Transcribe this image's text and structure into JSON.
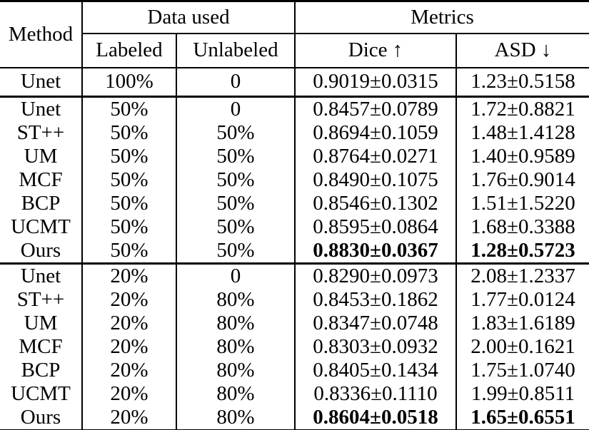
{
  "table": {
    "header": {
      "method": "Method",
      "data_used": "Data used",
      "metrics": "Metrics",
      "labeled": "Labeled",
      "unlabeled": "Unlabeled",
      "dice": "Dice ↑",
      "asd": "ASD ↓"
    },
    "sections": [
      {
        "rows": [
          {
            "method": "Unet",
            "labeled": "100%",
            "unlabeled": "0",
            "dice": "0.9019±0.0315",
            "asd": "1.23±0.5158",
            "bold": false
          }
        ]
      },
      {
        "rows": [
          {
            "method": "Unet",
            "labeled": "50%",
            "unlabeled": "0",
            "dice": "0.8457±0.0789",
            "asd": "1.72±0.8821",
            "bold": false
          },
          {
            "method": "ST++",
            "labeled": "50%",
            "unlabeled": "50%",
            "dice": "0.8694±0.1059",
            "asd": "1.48±1.4128",
            "bold": false
          },
          {
            "method": "UM",
            "labeled": "50%",
            "unlabeled": "50%",
            "dice": "0.8764±0.0271",
            "asd": "1.40±0.9589",
            "bold": false
          },
          {
            "method": "MCF",
            "labeled": "50%",
            "unlabeled": "50%",
            "dice": "0.8490±0.1075",
            "asd": "1.76±0.9014",
            "bold": false
          },
          {
            "method": "BCP",
            "labeled": "50%",
            "unlabeled": "50%",
            "dice": "0.8546±0.1302",
            "asd": "1.51±1.5220",
            "bold": false
          },
          {
            "method": "UCMT",
            "labeled": "50%",
            "unlabeled": "50%",
            "dice": "0.8595±0.0864",
            "asd": "1.68±0.3388",
            "bold": false
          },
          {
            "method": "Ours",
            "labeled": "50%",
            "unlabeled": "50%",
            "dice": "0.8830±0.0367",
            "asd": "1.28±0.5723",
            "bold": true
          }
        ]
      },
      {
        "rows": [
          {
            "method": "Unet",
            "labeled": "20%",
            "unlabeled": "0",
            "dice": "0.8290±0.0973",
            "asd": "2.08±1.2337",
            "bold": false
          },
          {
            "method": "ST++",
            "labeled": "20%",
            "unlabeled": "80%",
            "dice": "0.8453±0.1862",
            "asd": "1.77±0.0124",
            "bold": false
          },
          {
            "method": "UM",
            "labeled": "20%",
            "unlabeled": "80%",
            "dice": "0.8347±0.0748",
            "asd": "1.83±1.6189",
            "bold": false
          },
          {
            "method": "MCF",
            "labeled": "20%",
            "unlabeled": "80%",
            "dice": "0.8303±0.0932",
            "asd": "2.00±0.1621",
            "bold": false
          },
          {
            "method": "BCP",
            "labeled": "20%",
            "unlabeled": "80%",
            "dice": "0.8405±0.1434",
            "asd": "1.75±1.0740",
            "bold": false
          },
          {
            "method": "UCMT",
            "labeled": "20%",
            "unlabeled": "80%",
            "dice": "0.8336±0.1110",
            "asd": "1.99±0.8511",
            "bold": false
          },
          {
            "method": "Ours",
            "labeled": "20%",
            "unlabeled": "80%",
            "dice": "0.8604±0.0518",
            "asd": "1.65±0.6551",
            "bold": true
          }
        ]
      }
    ]
  }
}
